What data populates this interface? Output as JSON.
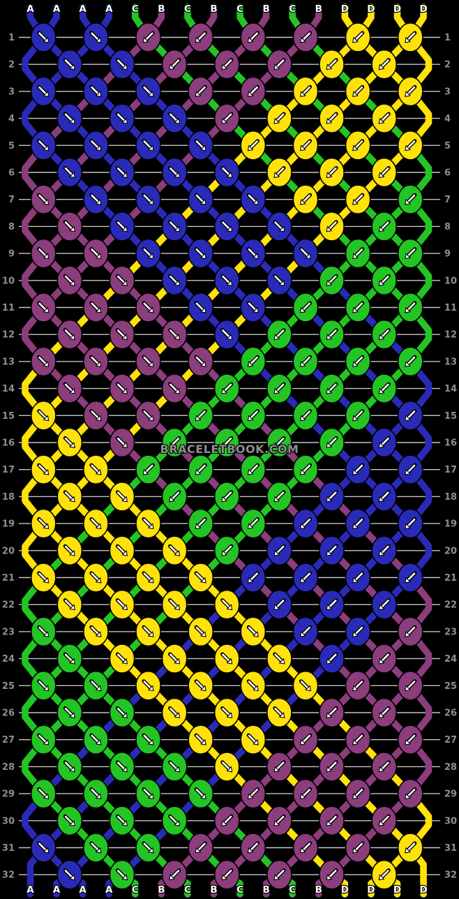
{
  "pattern": {
    "watermark": "BRACELETBOOK.COM",
    "row_count": 32,
    "row_numbers": [
      1,
      2,
      3,
      4,
      5,
      6,
      7,
      8,
      9,
      10,
      11,
      12,
      13,
      14,
      15,
      16,
      17,
      18,
      19,
      20,
      21,
      22,
      23,
      24,
      25,
      26,
      27,
      28,
      29,
      30,
      31,
      32
    ],
    "palette": {
      "A": "#2a2ab8",
      "B": "#8b3d7c",
      "C": "#24c424",
      "D": "#ffe20a"
    },
    "color_names": {
      "A": "blue",
      "B": "purple",
      "C": "green",
      "D": "yellow"
    },
    "arrow_icons": {
      "fwd": "diagonal-down-right-arrow-icon",
      "bwd": "diagonal-down-left-arrow-icon"
    },
    "top_labels": [
      "A",
      "A",
      "A",
      "A",
      "C",
      "B",
      "C",
      "B",
      "C",
      "B",
      "C",
      "B",
      "D",
      "D",
      "D",
      "D"
    ],
    "bottom_labels": [
      "A",
      "A",
      "A",
      "A",
      "C",
      "B",
      "C",
      "B",
      "C",
      "B",
      "C",
      "B",
      "D",
      "D",
      "D",
      "D"
    ],
    "rows": [
      [
        "A>",
        "A>",
        "B<",
        "B<",
        "B<",
        "B<",
        "D<",
        "D<"
      ],
      [
        "A>",
        "A>",
        "B<",
        "B<",
        "B<",
        "D<",
        "D<"
      ],
      [
        "A>",
        "A>",
        "A>",
        "B<",
        "B<",
        "D<",
        "D<",
        "D<"
      ],
      [
        "A>",
        "A>",
        "A>",
        "B<",
        "D<",
        "D<",
        "D<"
      ],
      [
        "A>",
        "A>",
        "A>",
        "A>",
        "D<",
        "D<",
        "D<",
        "D<"
      ],
      [
        "A>",
        "A>",
        "A>",
        "A>",
        "D<",
        "D<",
        "D<"
      ],
      [
        "B>",
        "A>",
        "A>",
        "A>",
        "A>",
        "D<",
        "D<",
        "C<"
      ],
      [
        "B>",
        "A>",
        "A>",
        "A>",
        "A>",
        "D<",
        "C<"
      ],
      [
        "B>",
        "B>",
        "A>",
        "A>",
        "A>",
        "A>",
        "C<",
        "C<"
      ],
      [
        "B>",
        "B>",
        "A>",
        "A>",
        "A>",
        "C<",
        "C<"
      ],
      [
        "B>",
        "B>",
        "B>",
        "A>",
        "A>",
        "C<",
        "C<",
        "C<"
      ],
      [
        "B>",
        "B>",
        "B>",
        "A>",
        "C<",
        "C<",
        "C<"
      ],
      [
        "B>",
        "B>",
        "B>",
        "B>",
        "C<",
        "C<",
        "C<",
        "C<"
      ],
      [
        "B>",
        "B>",
        "B>",
        "C<",
        "C<",
        "C<",
        "C<"
      ],
      [
        "D>",
        "B>",
        "B>",
        "C<",
        "C<",
        "C<",
        "C<",
        "A<"
      ],
      [
        "D>",
        "B>",
        "C<",
        "C<",
        "C<",
        "C<",
        "A<"
      ],
      [
        "D>",
        "D>",
        "C<",
        "C<",
        "C<",
        "C<",
        "A<",
        "A<"
      ],
      [
        "D>",
        "D>",
        "C<",
        "C<",
        "C<",
        "A<",
        "A<"
      ],
      [
        "D>",
        "D>",
        "D>",
        "C<",
        "C<",
        "A<",
        "A<",
        "A<"
      ],
      [
        "D>",
        "D>",
        "D>",
        "C<",
        "A<",
        "A<",
        "A<"
      ],
      [
        "D>",
        "D>",
        "D>",
        "D>",
        "A<",
        "A<",
        "A<",
        "A<"
      ],
      [
        "D>",
        "D>",
        "D>",
        "D>",
        "A<",
        "A<",
        "A<"
      ],
      [
        "C>",
        "D>",
        "D>",
        "D>",
        "D>",
        "A<",
        "A<",
        "B<"
      ],
      [
        "C>",
        "D>",
        "D>",
        "D>",
        "D>",
        "A<",
        "B<"
      ],
      [
        "C>",
        "C>",
        "D>",
        "D>",
        "D>",
        "D>",
        "B<",
        "B<"
      ],
      [
        "C>",
        "C>",
        "D>",
        "D>",
        "D>",
        "B<",
        "B<"
      ],
      [
        "C>",
        "C>",
        "C>",
        "D>",
        "D>",
        "B<",
        "B<",
        "B<"
      ],
      [
        "C>",
        "C>",
        "C>",
        "D>",
        "B<",
        "B<",
        "B<"
      ],
      [
        "C>",
        "C>",
        "C>",
        "C>",
        "B<",
        "B<",
        "B<",
        "B<"
      ],
      [
        "C>",
        "C>",
        "C>",
        "B<",
        "B<",
        "B<",
        "B<"
      ],
      [
        "A>",
        "C>",
        "C>",
        "B<",
        "B<",
        "B<",
        "B<",
        "D<"
      ],
      [
        "A>",
        "C>",
        "B<",
        "B<",
        "B<",
        "B<",
        "D<"
      ]
    ]
  }
}
